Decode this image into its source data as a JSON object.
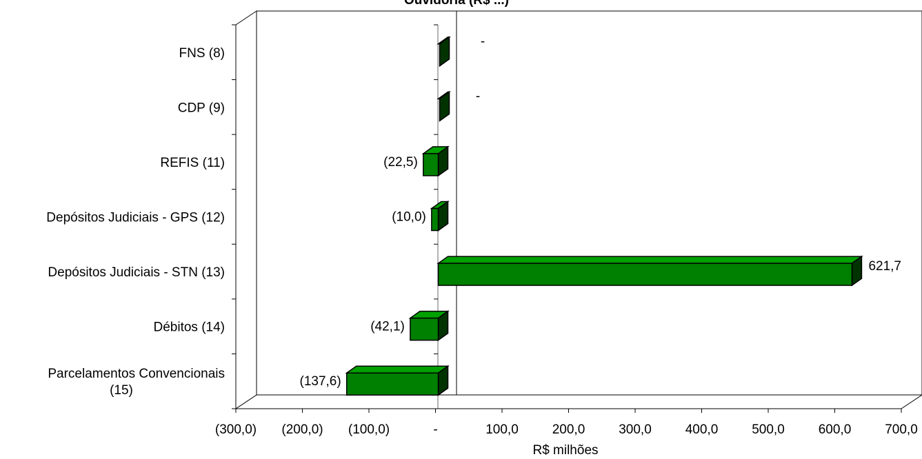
{
  "chart_data": {
    "type": "bar",
    "orientation": "horizontal",
    "title": "Ouvidoria (R$ ...)",
    "xlabel": "R$ milhões",
    "xlim": [
      -300,
      700
    ],
    "x_ticks": [
      -300,
      -200,
      -100,
      0,
      100,
      200,
      300,
      400,
      500,
      600,
      700
    ],
    "x_tick_labels": [
      "(300,0)",
      "(200,0)",
      "(100,0)",
      "-",
      "100,0",
      "200,0",
      "300,0",
      "400,0",
      "500,0",
      "600,0",
      "700,0"
    ],
    "categories": [
      "FNS (8)",
      "CDP (9)",
      "REFIS (11)",
      "Depósitos Judiciais - GPS (12)",
      "Depósitos Judiciais - STN (13)",
      "Débitos  (14)",
      "Parcelamentos Convencionais (15)"
    ],
    "category_lines": [
      [
        "FNS (8)"
      ],
      [
        "CDP (9)"
      ],
      [
        "REFIS (11)"
      ],
      [
        "Depósitos Judiciais - GPS (12)"
      ],
      [
        "Depósitos Judiciais - STN (13)"
      ],
      [
        "Débitos  (14)"
      ],
      [
        "Parcelamentos Convencionais",
        "(15)"
      ]
    ],
    "values": [
      0,
      0,
      -22.5,
      -10.0,
      621.7,
      -42.1,
      -137.6
    ],
    "data_labels": [
      "-",
      "-",
      "(22,5)",
      "(10,0)",
      "621,7",
      "(42,1)",
      "(137,6)"
    ],
    "bar_color": "#008000",
    "bar_side_color": "#003300",
    "bar_top_color": "#00a000",
    "grid": false,
    "legend": "none",
    "style": "3d-horizontal-bar"
  }
}
